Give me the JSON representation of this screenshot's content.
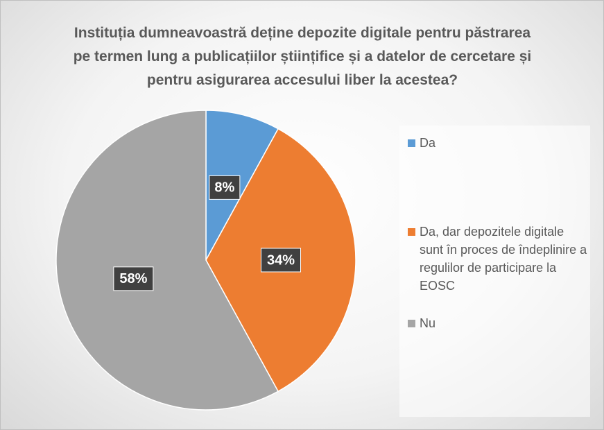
{
  "chart_data": {
    "type": "pie",
    "title": "Instituția dumneavoastră deține depozite digitale pentru păstrarea pe termen lung a publicațiilor științifice și a datelor de cercetare și pentru asigurarea accesului liber la acestea?",
    "categories": [
      "Da",
      "Da, dar depozitele digitale sunt în proces de îndeplinire a regulilor de participare la EOSC",
      "Nu"
    ],
    "values": [
      8,
      34,
      58
    ],
    "value_labels": [
      "8%",
      "34%",
      "58%"
    ],
    "colors": [
      "#5b9bd5",
      "#ed7d31",
      "#a5a5a5"
    ],
    "legend": "right"
  }
}
